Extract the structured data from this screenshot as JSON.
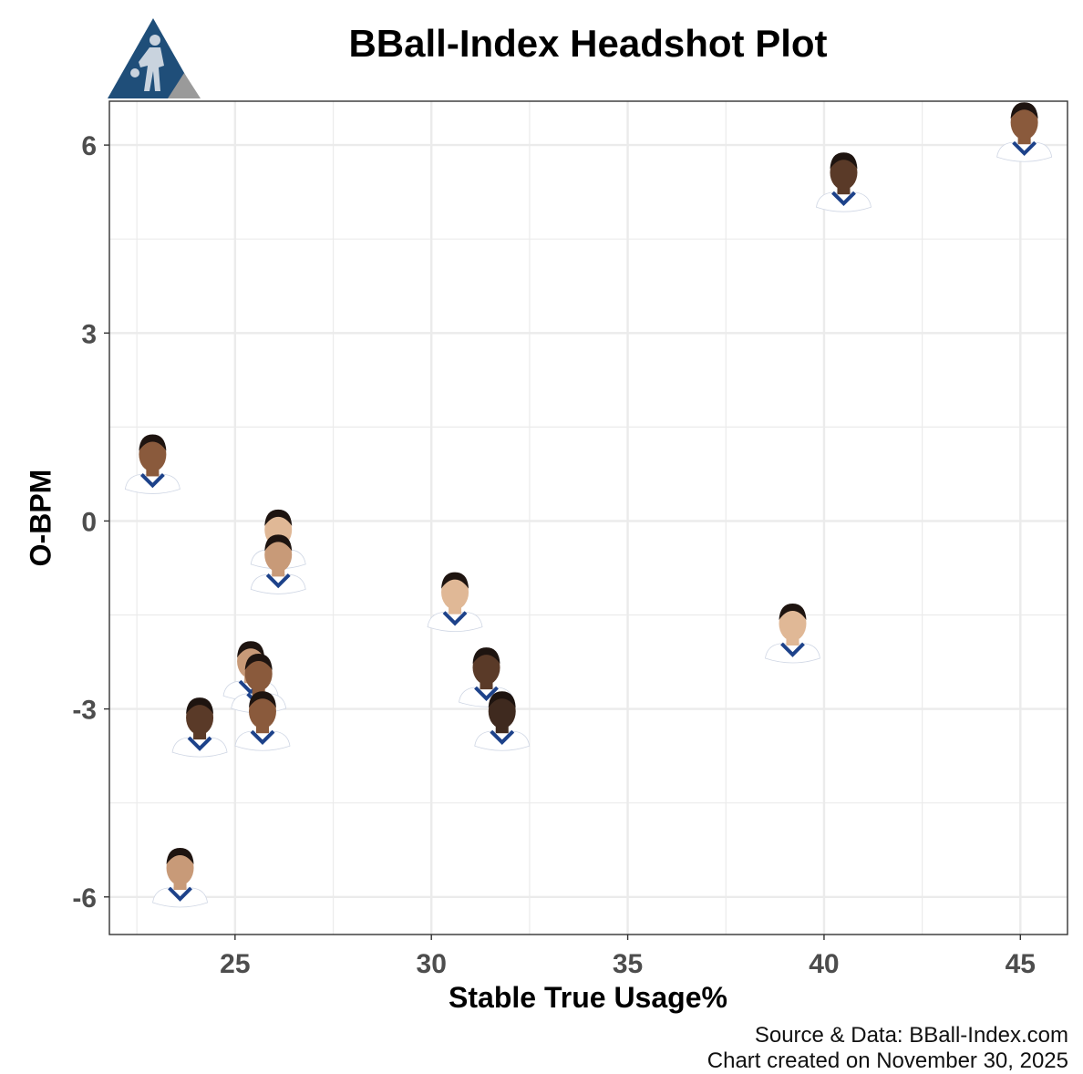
{
  "title": "BBall-Index Headshot Plot",
  "logo": {
    "name": "bball-index-logo",
    "colors": {
      "primary": "#1f4e79",
      "secondary": "#9a9a9a"
    }
  },
  "caption": {
    "source": "Source & Data: BBall-Index.com",
    "date": "Chart created on November 30, 2025"
  },
  "colors": {
    "panel_border": "#333333",
    "grid": "#ebebeb",
    "jersey_white": "#ffffff",
    "jersey_blue": "#1d428a",
    "skin_tones": [
      "#5a3a28",
      "#8a5a3c",
      "#c89a78",
      "#e0b896",
      "#3f2a1f"
    ]
  },
  "chart_data": {
    "type": "scatter",
    "title": "BBall-Index Headshot Plot",
    "xlabel": "Stable True Usage%",
    "ylabel": "O-BPM",
    "xlim": [
      21.8,
      46.2
    ],
    "ylim": [
      -6.6,
      6.7
    ],
    "xticks": [
      25,
      30,
      35,
      40,
      45
    ],
    "yticks": [
      6,
      3,
      0,
      -3,
      -6
    ],
    "xtick_labels": [
      "25",
      "30",
      "35",
      "40",
      "45"
    ],
    "ytick_labels": [
      "6",
      "3",
      "0",
      "-3",
      "-6"
    ],
    "grid": true,
    "legend": "none",
    "marker": "player headshot",
    "points": [
      {
        "x": 45.1,
        "y": 6.1,
        "skin": 1
      },
      {
        "x": 40.5,
        "y": 5.3,
        "skin": 0
      },
      {
        "x": 22.9,
        "y": 0.8,
        "skin": 1
      },
      {
        "x": 26.1,
        "y": -0.4,
        "skin": 3
      },
      {
        "x": 26.1,
        "y": -0.8,
        "skin": 2
      },
      {
        "x": 30.6,
        "y": -1.4,
        "skin": 3
      },
      {
        "x": 39.2,
        "y": -1.9,
        "skin": 3
      },
      {
        "x": 25.4,
        "y": -2.5,
        "skin": 2
      },
      {
        "x": 25.6,
        "y": -2.7,
        "skin": 1
      },
      {
        "x": 31.4,
        "y": -2.6,
        "skin": 0
      },
      {
        "x": 25.7,
        "y": -3.3,
        "skin": 1
      },
      {
        "x": 24.1,
        "y": -3.4,
        "skin": 0
      },
      {
        "x": 31.8,
        "y": -3.3,
        "skin": 4
      },
      {
        "x": 23.6,
        "y": -5.8,
        "skin": 2
      }
    ]
  }
}
